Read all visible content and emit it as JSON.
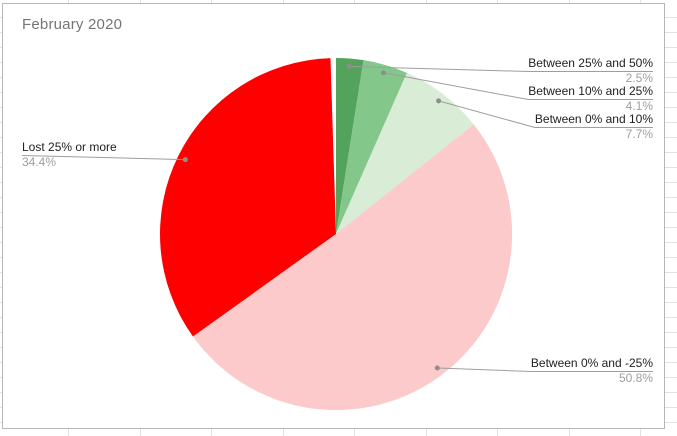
{
  "chart_data": {
    "type": "pie",
    "title": "February 2020",
    "start_angle_deg": 0,
    "direction": "clockwise",
    "legend_position": "labeled-callouts",
    "title_color": "#757575",
    "label_color": "#212121",
    "value_color": "#9e9e9e",
    "leader_line_color": "#9e9e9e",
    "slices": [
      {
        "label": "Between 25% and 50%",
        "value": 2.5,
        "display": "2.5%",
        "color": "#54a35c"
      },
      {
        "label": "Between 10% and 25%",
        "value": 4.1,
        "display": "4.1%",
        "color": "#84c78a"
      },
      {
        "label": "Between 0% and 10%",
        "value": 7.7,
        "display": "7.7%",
        "color": "#d9ecd6"
      },
      {
        "label": "Between 0% and -25%",
        "value": 50.8,
        "display": "50.8%",
        "color": "#fccaca"
      },
      {
        "label": "Lost 25% or more",
        "value": 34.4,
        "display": "34.4%",
        "color": "#ff0000"
      }
    ]
  }
}
